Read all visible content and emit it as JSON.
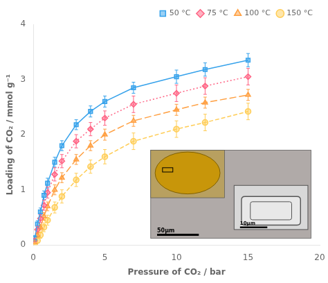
{
  "chart_data": {
    "type": "scatter",
    "xlabel": "Pressure of CO₂ / bar",
    "ylabel": "Loading of CO₂ / mmol g⁻¹",
    "xlim": [
      0,
      20
    ],
    "ylim": [
      0,
      4
    ],
    "xticks": [
      0,
      5,
      10,
      15,
      20
    ],
    "yticks": [
      0,
      1,
      2,
      3,
      4
    ],
    "grid": false,
    "legend": "upper right",
    "series": [
      {
        "name": "50 °C",
        "marker": "square",
        "line_style": "solid",
        "x": [
          0.1,
          0.3,
          0.5,
          0.75,
          1.0,
          1.5,
          2.0,
          3.0,
          4.0,
          5.0,
          7.0,
          10.0,
          12.0,
          15.0
        ],
        "values": [
          0.12,
          0.38,
          0.6,
          0.9,
          1.12,
          1.5,
          1.8,
          2.18,
          2.42,
          2.6,
          2.85,
          3.05,
          3.18,
          3.35
        ],
        "yerr": [
          0.05,
          0.06,
          0.07,
          0.08,
          0.09,
          0.09,
          0.09,
          0.09,
          0.1,
          0.1,
          0.1,
          0.12,
          0.12,
          0.12
        ]
      },
      {
        "name": "75 °C",
        "marker": "diamond",
        "line_style": "dotted",
        "x": [
          0.1,
          0.3,
          0.5,
          0.75,
          1.0,
          1.5,
          2.0,
          3.0,
          4.0,
          5.0,
          7.0,
          10.0,
          12.0,
          15.0
        ],
        "values": [
          0.08,
          0.28,
          0.48,
          0.72,
          0.95,
          1.28,
          1.52,
          1.88,
          2.1,
          2.3,
          2.55,
          2.75,
          2.88,
          3.05
        ],
        "yerr": [
          0.04,
          0.06,
          0.07,
          0.09,
          0.1,
          0.12,
          0.12,
          0.12,
          0.12,
          0.13,
          0.15,
          0.15,
          0.15,
          0.15
        ]
      },
      {
        "name": "100 °C",
        "marker": "triangle",
        "line_style": "long_dashed",
        "x": [
          0.1,
          0.3,
          0.5,
          0.75,
          1.0,
          1.5,
          2.0,
          3.0,
          4.0,
          5.0,
          7.0,
          10.0,
          12.0,
          15.0
        ],
        "values": [
          0.05,
          0.18,
          0.32,
          0.52,
          0.7,
          1.0,
          1.22,
          1.55,
          1.8,
          2.0,
          2.25,
          2.45,
          2.58,
          2.72
        ],
        "yerr": [
          0.03,
          0.04,
          0.05,
          0.07,
          0.08,
          0.09,
          0.09,
          0.09,
          0.09,
          0.1,
          0.1,
          0.1,
          0.1,
          0.1
        ]
      },
      {
        "name": "150 °C",
        "marker": "circle",
        "line_style": "dashed",
        "x": [
          0.1,
          0.3,
          0.5,
          0.75,
          1.0,
          1.5,
          2.0,
          3.0,
          4.0,
          5.0,
          7.0,
          10.0,
          12.0,
          15.0
        ],
        "values": [
          0.02,
          0.08,
          0.18,
          0.32,
          0.45,
          0.68,
          0.88,
          1.18,
          1.42,
          1.6,
          1.88,
          2.1,
          2.22,
          2.42
        ],
        "yerr": [
          0.02,
          0.04,
          0.06,
          0.08,
          0.09,
          0.1,
          0.12,
          0.12,
          0.12,
          0.13,
          0.15,
          0.15,
          0.15,
          0.15
        ]
      }
    ],
    "annotations": [
      "50μm",
      "10μm"
    ]
  }
}
